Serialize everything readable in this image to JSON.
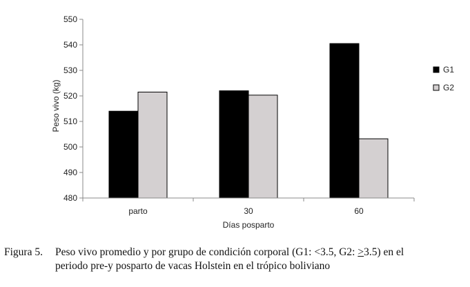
{
  "chart_data": {
    "type": "bar",
    "categories": [
      "parto",
      "30",
      "60"
    ],
    "series": [
      {
        "name": "G1",
        "values": [
          514,
          522,
          540.5
        ],
        "color": "#000000"
      },
      {
        "name": "G2",
        "values": [
          521.5,
          520.3,
          503.2
        ],
        "color": "#d4d0d1"
      }
    ],
    "xlabel": "Días posparto",
    "ylabel": "Peso vivo (kg)",
    "ylim": [
      480,
      550
    ],
    "yticks": [
      480,
      490,
      500,
      510,
      520,
      530,
      540,
      550
    ],
    "legend_position": "right",
    "grid": false
  },
  "caption": {
    "label": "Figura 5.",
    "text_a": "Peso vivo promedio y por grupo de condición corporal (G1: <3.5, G2: ",
    "text_u": ">",
    "text_b": "3.5) en el",
    "line2": "periodo pre-y posparto de vacas Holstein en el trópico boliviano"
  }
}
